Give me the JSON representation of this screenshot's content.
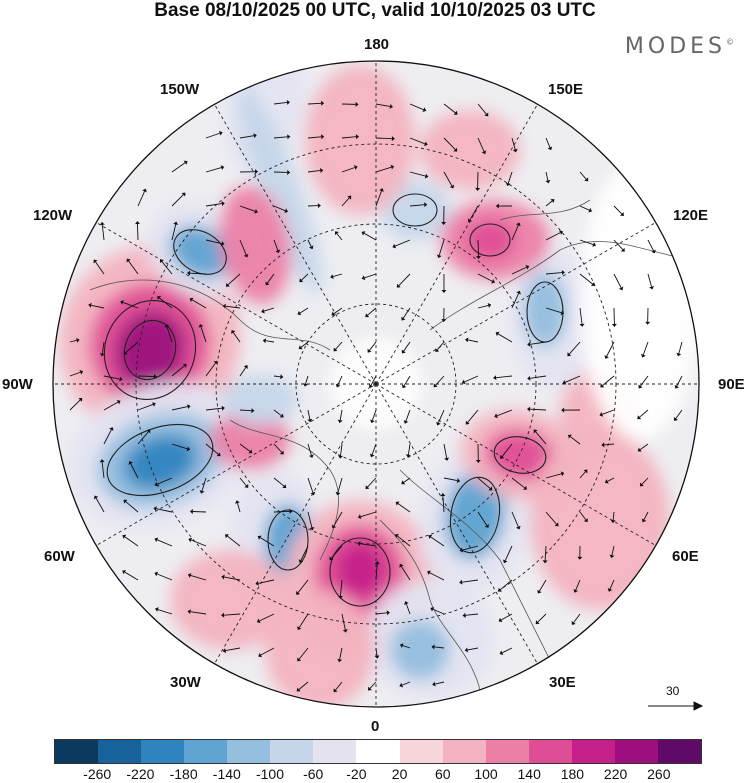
{
  "title": "Base 08/10/2025 00 UTC, valid 10/10/2025 03 UTC",
  "brand": "MODES",
  "brand_mark": "©",
  "longitude_labels": {
    "top": "180",
    "bottom": "0",
    "left": "90W",
    "right": "90E",
    "upper_left_1": "150W",
    "upper_left_2": "120W",
    "upper_right_1": "150E",
    "upper_right_2": "120E",
    "lower_left_1": "60W",
    "lower_left_2": "30W",
    "lower_right_1": "60E",
    "lower_right_2": "30E"
  },
  "reference_vector": {
    "label": "30"
  },
  "colorbar": {
    "ticks": [
      "-260",
      "-220",
      "-180",
      "-140",
      "-100",
      "-60",
      "-20",
      "20",
      "60",
      "100",
      "140",
      "180",
      "220",
      "260"
    ],
    "colors": [
      "#0b3a5e",
      "#17629a",
      "#2f84bf",
      "#5ea3d1",
      "#95bfdf",
      "#c5d6ea",
      "#e4e4f1",
      "#ffffff",
      "#f8d7da",
      "#f3b3c0",
      "#ec7fa6",
      "#e04d97",
      "#c51f89",
      "#9c0f7d",
      "#5e0a66"
    ]
  }
}
